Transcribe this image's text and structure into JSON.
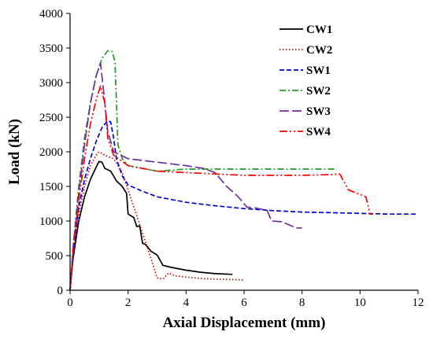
{
  "chart_data": {
    "type": "line",
    "xlabel": "Axial Displacement (mm)",
    "ylabel": "Load (kN)",
    "xlim": [
      0,
      12
    ],
    "ylim": [
      0,
      4000
    ],
    "xticks": [
      0,
      2,
      4,
      6,
      8,
      10,
      12
    ],
    "yticks": [
      0,
      500,
      1000,
      1500,
      2000,
      2500,
      3000,
      3500,
      4000
    ],
    "grid": false,
    "legend": "top-right",
    "series": [
      {
        "name": "CW1",
        "color": "#000000",
        "dash": "solid",
        "points": [
          [
            0,
            0
          ],
          [
            0.1,
            450
          ],
          [
            0.3,
            1000
          ],
          [
            0.5,
            1350
          ],
          [
            0.7,
            1600
          ],
          [
            0.9,
            1780
          ],
          [
            1.0,
            1860
          ],
          [
            1.1,
            1850
          ],
          [
            1.2,
            1760
          ],
          [
            1.4,
            1720
          ],
          [
            1.6,
            1580
          ],
          [
            1.8,
            1500
          ],
          [
            1.95,
            1400
          ],
          [
            2.0,
            1100
          ],
          [
            2.2,
            1050
          ],
          [
            2.3,
            920
          ],
          [
            2.4,
            930
          ],
          [
            2.5,
            680
          ],
          [
            2.6,
            660
          ],
          [
            2.8,
            560
          ],
          [
            3.0,
            510
          ],
          [
            3.2,
            360
          ],
          [
            3.5,
            330
          ],
          [
            4.0,
            290
          ],
          [
            4.5,
            260
          ],
          [
            5.0,
            240
          ],
          [
            5.6,
            230
          ]
        ]
      },
      {
        "name": "CW2",
        "color": "#cc0000",
        "dash": "dotted",
        "points": [
          [
            0,
            0
          ],
          [
            0.1,
            500
          ],
          [
            0.3,
            1100
          ],
          [
            0.5,
            1500
          ],
          [
            0.7,
            1800
          ],
          [
            0.9,
            1950
          ],
          [
            1.0,
            2000
          ],
          [
            1.2,
            1950
          ],
          [
            1.5,
            1900
          ],
          [
            1.8,
            1700
          ],
          [
            2.0,
            1450
          ],
          [
            2.2,
            1200
          ],
          [
            2.4,
            950
          ],
          [
            2.6,
            700
          ],
          [
            2.8,
            450
          ],
          [
            3.0,
            180
          ],
          [
            3.2,
            160
          ],
          [
            3.4,
            250
          ],
          [
            3.6,
            210
          ],
          [
            4.0,
            190
          ],
          [
            4.5,
            170
          ],
          [
            5.0,
            160
          ],
          [
            5.5,
            155
          ],
          [
            6.0,
            150
          ]
        ]
      },
      {
        "name": "SW1",
        "color": "#0000dd",
        "dash": "dashed",
        "points": [
          [
            0,
            0
          ],
          [
            0.1,
            500
          ],
          [
            0.3,
            1200
          ],
          [
            0.5,
            1600
          ],
          [
            0.7,
            1900
          ],
          [
            0.9,
            2150
          ],
          [
            1.1,
            2350
          ],
          [
            1.3,
            2450
          ],
          [
            1.4,
            2430
          ],
          [
            1.5,
            2200
          ],
          [
            1.6,
            1900
          ],
          [
            1.8,
            1650
          ],
          [
            2.0,
            1520
          ],
          [
            2.5,
            1430
          ],
          [
            3.0,
            1350
          ],
          [
            4.0,
            1270
          ],
          [
            5.0,
            1220
          ],
          [
            6.0,
            1180
          ],
          [
            7.0,
            1150
          ],
          [
            8.0,
            1130
          ],
          [
            9.0,
            1120
          ],
          [
            10.0,
            1110
          ],
          [
            11.0,
            1100
          ],
          [
            12.0,
            1100
          ]
        ]
      },
      {
        "name": "SW2",
        "color": "#229922",
        "dash": "dashdot",
        "points": [
          [
            0,
            0
          ],
          [
            0.1,
            600
          ],
          [
            0.3,
            1500
          ],
          [
            0.5,
            2200
          ],
          [
            0.7,
            2700
          ],
          [
            0.9,
            3100
          ],
          [
            1.1,
            3350
          ],
          [
            1.3,
            3460
          ],
          [
            1.45,
            3450
          ],
          [
            1.55,
            3300
          ],
          [
            1.65,
            2100
          ],
          [
            1.8,
            1900
          ],
          [
            2.0,
            1800
          ],
          [
            3.0,
            1720
          ],
          [
            4.0,
            1750
          ],
          [
            5.0,
            1750
          ],
          [
            6.0,
            1750
          ],
          [
            7.0,
            1750
          ],
          [
            8.0,
            1750
          ],
          [
            9.0,
            1750
          ],
          [
            9.2,
            1750
          ]
        ]
      },
      {
        "name": "SW3",
        "color": "#7030a0",
        "dash": "longdash",
        "points": [
          [
            0,
            0
          ],
          [
            0.1,
            600
          ],
          [
            0.3,
            1400
          ],
          [
            0.5,
            2100
          ],
          [
            0.7,
            2700
          ],
          [
            0.9,
            3100
          ],
          [
            1.05,
            3280
          ],
          [
            1.15,
            2900
          ],
          [
            1.3,
            2300
          ],
          [
            1.5,
            2000
          ],
          [
            2.0,
            1900
          ],
          [
            3.0,
            1850
          ],
          [
            4.0,
            1800
          ],
          [
            4.6,
            1760
          ],
          [
            5.0,
            1700
          ],
          [
            5.4,
            1500
          ],
          [
            5.8,
            1350
          ],
          [
            6.1,
            1200
          ],
          [
            6.4,
            1190
          ],
          [
            6.8,
            1150
          ],
          [
            6.95,
            1000
          ],
          [
            7.3,
            990
          ],
          [
            7.8,
            900
          ],
          [
            8.0,
            900
          ]
        ]
      },
      {
        "name": "SW4",
        "color": "#ff0000",
        "dash": "dashdotdot",
        "points": [
          [
            0,
            0
          ],
          [
            0.1,
            550
          ],
          [
            0.3,
            1300
          ],
          [
            0.5,
            1900
          ],
          [
            0.7,
            2400
          ],
          [
            0.9,
            2750
          ],
          [
            1.05,
            2950
          ],
          [
            1.2,
            2700
          ],
          [
            1.3,
            2200
          ],
          [
            1.5,
            1950
          ],
          [
            2.0,
            1800
          ],
          [
            3.0,
            1720
          ],
          [
            4.0,
            1700
          ],
          [
            5.0,
            1680
          ],
          [
            6.0,
            1660
          ],
          [
            7.0,
            1660
          ],
          [
            8.0,
            1660
          ],
          [
            9.0,
            1670
          ],
          [
            9.3,
            1680
          ],
          [
            9.6,
            1450
          ],
          [
            9.9,
            1400
          ],
          [
            10.2,
            1350
          ],
          [
            10.35,
            1100
          ],
          [
            10.45,
            1100
          ]
        ]
      }
    ]
  }
}
